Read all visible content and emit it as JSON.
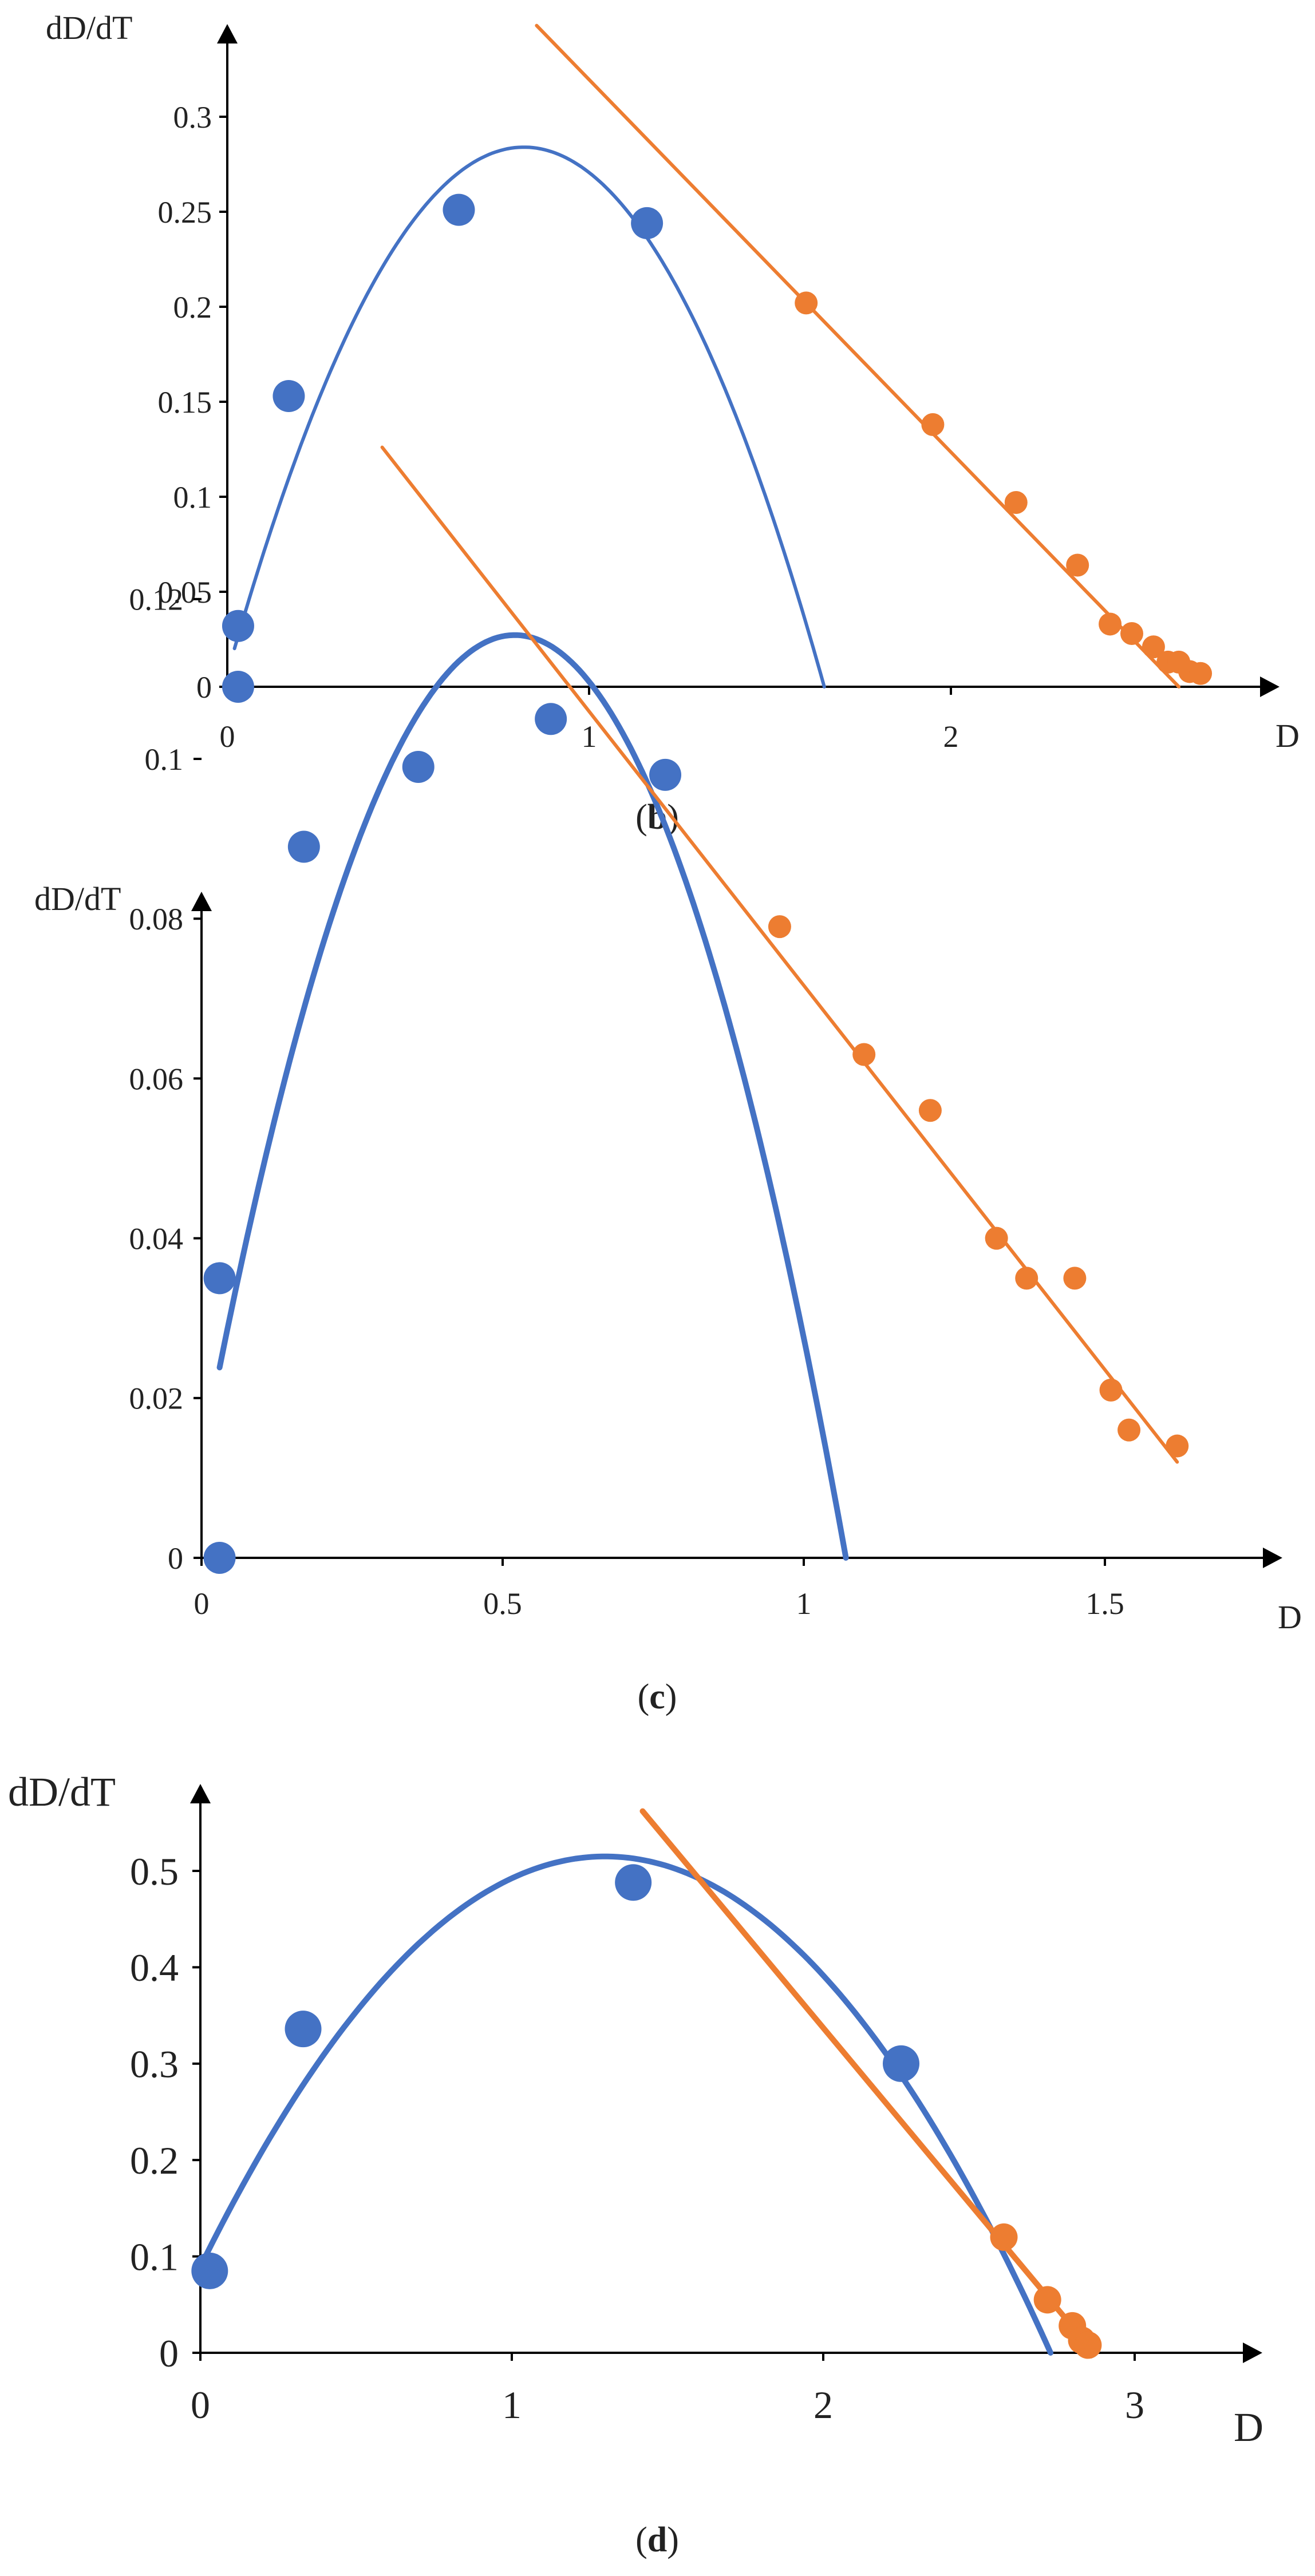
{
  "chart_data": [
    {
      "type": "scatter",
      "panel_label": "b",
      "xlabel": "D",
      "ylabel": "dD/dT",
      "xlim": [
        0,
        2.9
      ],
      "ylim": [
        0,
        0.3
      ],
      "xticks": [
        0,
        1,
        2
      ],
      "xtick_labels": [
        "0",
        "1",
        "2"
      ],
      "yticks": [
        0,
        0.05,
        0.1,
        0.15,
        0.2,
        0.25,
        0.3
      ],
      "ytick_labels": [
        "0",
        "0.05",
        "0.1",
        "0.15",
        "0.2",
        "0.25",
        "0.3"
      ],
      "grid": false,
      "colors": {
        "blue": "#4472C4",
        "orange": "#ED7D31"
      },
      "series": [
        {
          "color": "#4472C4",
          "points": [
            [
              0.03,
              0.0
            ],
            [
              0.03,
              0.032
            ],
            [
              0.17,
              0.153
            ],
            [
              0.64,
              0.251
            ],
            [
              1.16,
              0.244
            ]
          ]
        },
        {
          "color": "#ED7D31",
          "points": [
            [
              1.6,
              0.202
            ],
            [
              1.95,
              0.138
            ],
            [
              2.18,
              0.097
            ],
            [
              2.35,
              0.064
            ],
            [
              2.44,
              0.033
            ],
            [
              2.5,
              0.028
            ],
            [
              2.56,
              0.021
            ],
            [
              2.6,
              0.013
            ],
            [
              2.63,
              0.013
            ],
            [
              2.66,
              0.008
            ],
            [
              2.69,
              0.007
            ]
          ]
        }
      ],
      "fits": [
        {
          "color": "#4472C4",
          "kind": "parabola",
          "vertex": [
            0.82,
            0.284
          ],
          "x_range": [
            0.02,
            1.65
          ],
          "y_min": 0
        },
        {
          "color": "#ED7D31",
          "kind": "line",
          "points": [
            [
              0.855,
              0.348
            ],
            [
              2.63,
              0.0
            ]
          ],
          "y_min": 0
        }
      ]
    },
    {
      "type": "scatter",
      "panel_label": "c",
      "xlabel": "D",
      "ylabel": "dD/dT",
      "xlim": [
        0,
        1.79
      ],
      "ylim": [
        0,
        0.12
      ],
      "xticks": [
        0,
        0.5,
        1,
        1.5
      ],
      "xtick_labels": [
        "0",
        "0.5",
        "1",
        "1.5"
      ],
      "yticks": [
        0,
        0.02,
        0.04,
        0.06,
        0.08,
        0.1,
        0.12
      ],
      "ytick_labels": [
        "0",
        "0.02",
        "0.04",
        "0.06",
        "0.08",
        "0.1",
        "0.12"
      ],
      "grid": false,
      "colors": {
        "blue": "#4472C4",
        "orange": "#ED7D31"
      },
      "series": [
        {
          "color": "#4472C4",
          "points": [
            [
              0.03,
              0.0
            ],
            [
              0.03,
              0.035
            ],
            [
              0.17,
              0.089
            ],
            [
              0.36,
              0.099
            ],
            [
              0.58,
              0.105
            ],
            [
              0.77,
              0.098
            ]
          ]
        },
        {
          "color": "#ED7D31",
          "points": [
            [
              0.96,
              0.079
            ],
            [
              1.1,
              0.063
            ],
            [
              1.21,
              0.056
            ],
            [
              1.32,
              0.04
            ],
            [
              1.37,
              0.035
            ],
            [
              1.45,
              0.035
            ],
            [
              1.51,
              0.021
            ],
            [
              1.54,
              0.016
            ],
            [
              1.62,
              0.014
            ]
          ]
        }
      ],
      "fits": [
        {
          "color": "#4472C4",
          "kind": "parabola",
          "vertex": [
            0.52,
            0.1155
          ],
          "x_range": [
            0.03,
            1.07
          ],
          "y_min": 0,
          "thick": true
        },
        {
          "color": "#ED7D31",
          "kind": "line",
          "points": [
            [
              0.3,
              0.139
            ],
            [
              1.62,
              0.012
            ]
          ],
          "y_min": 0
        }
      ]
    },
    {
      "type": "scatter",
      "panel_label": "d",
      "xlabel": "D",
      "ylabel": "dD/dT",
      "xlim": [
        0,
        3.38
      ],
      "ylim": [
        0,
        0.5
      ],
      "xticks": [
        0,
        1,
        2,
        3
      ],
      "xtick_labels": [
        "0",
        "1",
        "2",
        "3"
      ],
      "yticks": [
        0,
        0.1,
        0.2,
        0.3,
        0.4,
        0.5
      ],
      "ytick_labels": [
        "0",
        "0.1",
        "0.2",
        "0.3",
        "0.4",
        "0.5"
      ],
      "grid": false,
      "colors": {
        "blue": "#4472C4",
        "orange": "#ED7D31"
      },
      "series": [
        {
          "color": "#4472C4",
          "points": [
            [
              0.03,
              0.085
            ],
            [
              0.33,
              0.336
            ],
            [
              1.39,
              0.488
            ],
            [
              2.25,
              0.3
            ]
          ]
        },
        {
          "color": "#ED7D31",
          "points": [
            [
              2.58,
              0.12
            ],
            [
              2.72,
              0.055
            ],
            [
              2.8,
              0.028
            ],
            [
              2.83,
              0.013
            ],
            [
              2.85,
              0.008
            ]
          ]
        }
      ],
      "fits": [
        {
          "color": "#4472C4",
          "kind": "parabola",
          "vertex": [
            1.3,
            0.515
          ],
          "x_range": [
            0.02,
            2.73
          ],
          "y_min": 0,
          "thick": true
        },
        {
          "color": "#ED7D31",
          "kind": "line",
          "points": [
            [
              1.42,
              0.562
            ],
            [
              2.87,
              0.0
            ]
          ],
          "y_min": 0,
          "thick": true
        }
      ]
    }
  ]
}
